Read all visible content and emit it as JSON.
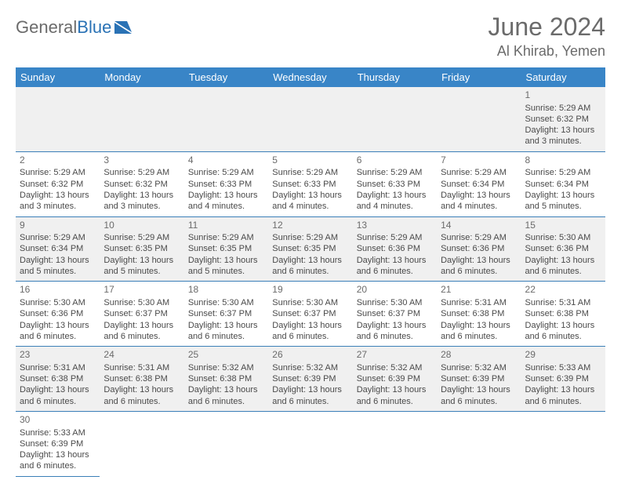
{
  "brand": {
    "part1": "General",
    "part2": "Blue"
  },
  "title": "June 2024",
  "location": "Al Khirab, Yemen",
  "colors": {
    "header_bg": "#3985c7",
    "header_text": "#ffffff",
    "row_border": "#3b7fb8",
    "alt_row_bg": "#f0f0f0",
    "text": "#4a4a4a",
    "brand_gray": "#6b6b6b",
    "brand_blue": "#2a72b5"
  },
  "weekdays": [
    "Sunday",
    "Monday",
    "Tuesday",
    "Wednesday",
    "Thursday",
    "Friday",
    "Saturday"
  ],
  "weeks": [
    [
      null,
      null,
      null,
      null,
      null,
      null,
      {
        "n": "1",
        "sr": "Sunrise: 5:29 AM",
        "ss": "Sunset: 6:32 PM",
        "dl": "Daylight: 13 hours and 3 minutes."
      }
    ],
    [
      {
        "n": "2",
        "sr": "Sunrise: 5:29 AM",
        "ss": "Sunset: 6:32 PM",
        "dl": "Daylight: 13 hours and 3 minutes."
      },
      {
        "n": "3",
        "sr": "Sunrise: 5:29 AM",
        "ss": "Sunset: 6:32 PM",
        "dl": "Daylight: 13 hours and 3 minutes."
      },
      {
        "n": "4",
        "sr": "Sunrise: 5:29 AM",
        "ss": "Sunset: 6:33 PM",
        "dl": "Daylight: 13 hours and 4 minutes."
      },
      {
        "n": "5",
        "sr": "Sunrise: 5:29 AM",
        "ss": "Sunset: 6:33 PM",
        "dl": "Daylight: 13 hours and 4 minutes."
      },
      {
        "n": "6",
        "sr": "Sunrise: 5:29 AM",
        "ss": "Sunset: 6:33 PM",
        "dl": "Daylight: 13 hours and 4 minutes."
      },
      {
        "n": "7",
        "sr": "Sunrise: 5:29 AM",
        "ss": "Sunset: 6:34 PM",
        "dl": "Daylight: 13 hours and 4 minutes."
      },
      {
        "n": "8",
        "sr": "Sunrise: 5:29 AM",
        "ss": "Sunset: 6:34 PM",
        "dl": "Daylight: 13 hours and 5 minutes."
      }
    ],
    [
      {
        "n": "9",
        "sr": "Sunrise: 5:29 AM",
        "ss": "Sunset: 6:34 PM",
        "dl": "Daylight: 13 hours and 5 minutes."
      },
      {
        "n": "10",
        "sr": "Sunrise: 5:29 AM",
        "ss": "Sunset: 6:35 PM",
        "dl": "Daylight: 13 hours and 5 minutes."
      },
      {
        "n": "11",
        "sr": "Sunrise: 5:29 AM",
        "ss": "Sunset: 6:35 PM",
        "dl": "Daylight: 13 hours and 5 minutes."
      },
      {
        "n": "12",
        "sr": "Sunrise: 5:29 AM",
        "ss": "Sunset: 6:35 PM",
        "dl": "Daylight: 13 hours and 6 minutes."
      },
      {
        "n": "13",
        "sr": "Sunrise: 5:29 AM",
        "ss": "Sunset: 6:36 PM",
        "dl": "Daylight: 13 hours and 6 minutes."
      },
      {
        "n": "14",
        "sr": "Sunrise: 5:29 AM",
        "ss": "Sunset: 6:36 PM",
        "dl": "Daylight: 13 hours and 6 minutes."
      },
      {
        "n": "15",
        "sr": "Sunrise: 5:30 AM",
        "ss": "Sunset: 6:36 PM",
        "dl": "Daylight: 13 hours and 6 minutes."
      }
    ],
    [
      {
        "n": "16",
        "sr": "Sunrise: 5:30 AM",
        "ss": "Sunset: 6:36 PM",
        "dl": "Daylight: 13 hours and 6 minutes."
      },
      {
        "n": "17",
        "sr": "Sunrise: 5:30 AM",
        "ss": "Sunset: 6:37 PM",
        "dl": "Daylight: 13 hours and 6 minutes."
      },
      {
        "n": "18",
        "sr": "Sunrise: 5:30 AM",
        "ss": "Sunset: 6:37 PM",
        "dl": "Daylight: 13 hours and 6 minutes."
      },
      {
        "n": "19",
        "sr": "Sunrise: 5:30 AM",
        "ss": "Sunset: 6:37 PM",
        "dl": "Daylight: 13 hours and 6 minutes."
      },
      {
        "n": "20",
        "sr": "Sunrise: 5:30 AM",
        "ss": "Sunset: 6:37 PM",
        "dl": "Daylight: 13 hours and 6 minutes."
      },
      {
        "n": "21",
        "sr": "Sunrise: 5:31 AM",
        "ss": "Sunset: 6:38 PM",
        "dl": "Daylight: 13 hours and 6 minutes."
      },
      {
        "n": "22",
        "sr": "Sunrise: 5:31 AM",
        "ss": "Sunset: 6:38 PM",
        "dl": "Daylight: 13 hours and 6 minutes."
      }
    ],
    [
      {
        "n": "23",
        "sr": "Sunrise: 5:31 AM",
        "ss": "Sunset: 6:38 PM",
        "dl": "Daylight: 13 hours and 6 minutes."
      },
      {
        "n": "24",
        "sr": "Sunrise: 5:31 AM",
        "ss": "Sunset: 6:38 PM",
        "dl": "Daylight: 13 hours and 6 minutes."
      },
      {
        "n": "25",
        "sr": "Sunrise: 5:32 AM",
        "ss": "Sunset: 6:38 PM",
        "dl": "Daylight: 13 hours and 6 minutes."
      },
      {
        "n": "26",
        "sr": "Sunrise: 5:32 AM",
        "ss": "Sunset: 6:39 PM",
        "dl": "Daylight: 13 hours and 6 minutes."
      },
      {
        "n": "27",
        "sr": "Sunrise: 5:32 AM",
        "ss": "Sunset: 6:39 PM",
        "dl": "Daylight: 13 hours and 6 minutes."
      },
      {
        "n": "28",
        "sr": "Sunrise: 5:32 AM",
        "ss": "Sunset: 6:39 PM",
        "dl": "Daylight: 13 hours and 6 minutes."
      },
      {
        "n": "29",
        "sr": "Sunrise: 5:33 AM",
        "ss": "Sunset: 6:39 PM",
        "dl": "Daylight: 13 hours and 6 minutes."
      }
    ],
    [
      {
        "n": "30",
        "sr": "Sunrise: 5:33 AM",
        "ss": "Sunset: 6:39 PM",
        "dl": "Daylight: 13 hours and 6 minutes."
      },
      null,
      null,
      null,
      null,
      null,
      null
    ]
  ]
}
